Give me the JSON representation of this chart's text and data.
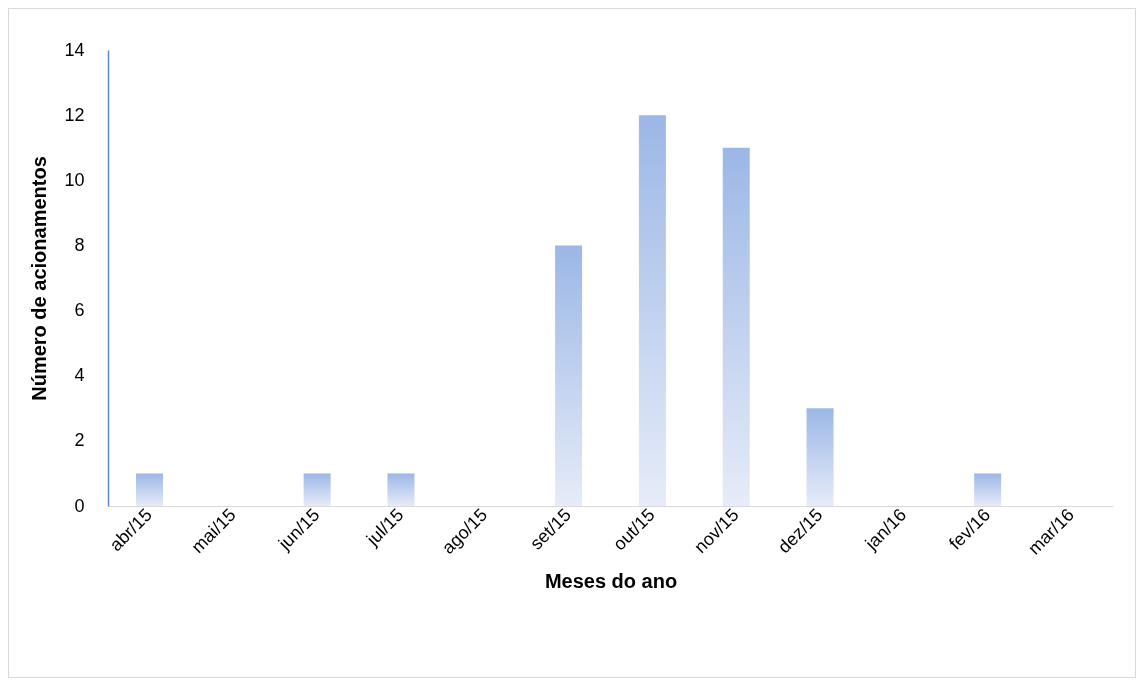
{
  "chart_data": {
    "type": "bar",
    "xlabel": "Meses do  ano",
    "ylabel": "Número de acionamentos",
    "categories": [
      "abr/15",
      "mai/15",
      "jun/15",
      "jul/15",
      "ago/15",
      "set/15",
      "out/15",
      "nov/15",
      "dez/15",
      "jan/16",
      "fev/16",
      "mar/16"
    ],
    "values": [
      1,
      0,
      1,
      1,
      0,
      8,
      12,
      11,
      3,
      0,
      1,
      0
    ],
    "color": "#9cb7e6",
    "ylim": [
      0,
      14
    ],
    "yticks": [
      0,
      2,
      4,
      6,
      8,
      10,
      12,
      14
    ],
    "grid": false,
    "legend": false
  }
}
